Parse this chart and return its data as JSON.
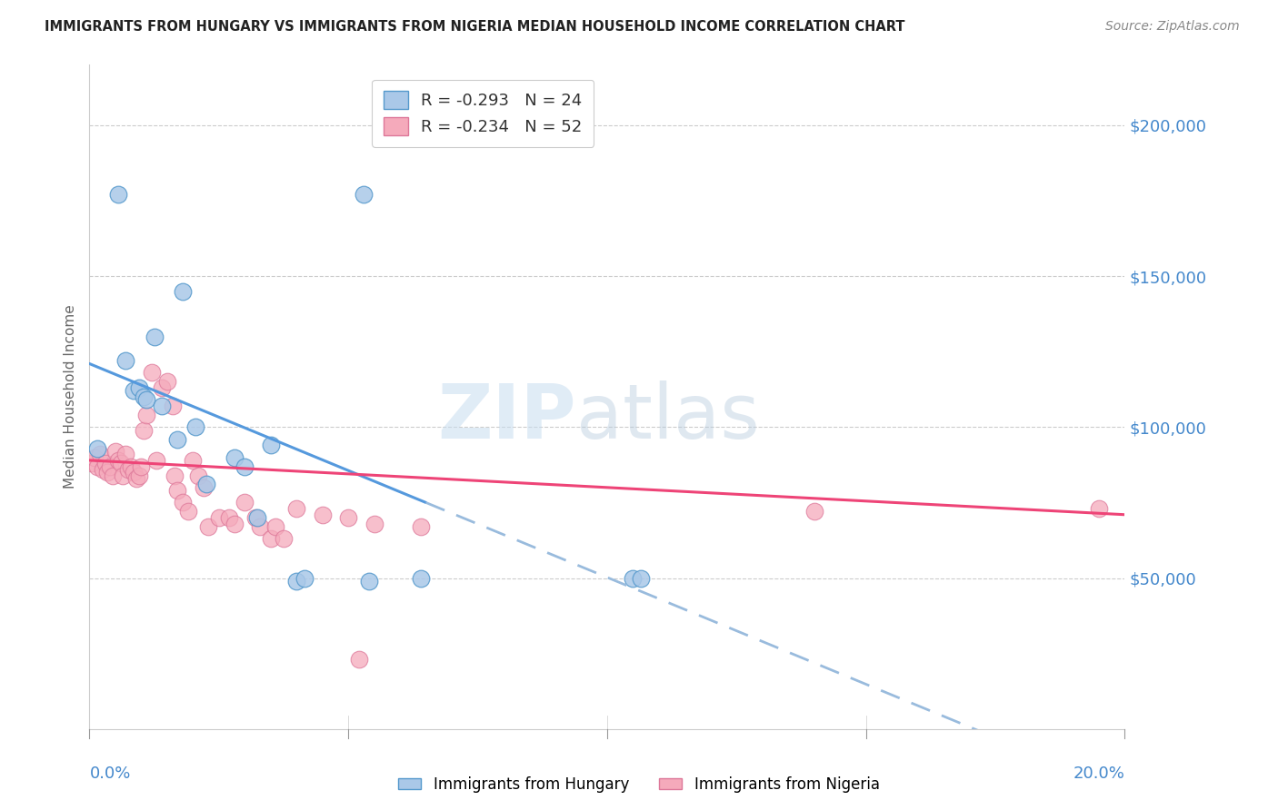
{
  "title": "IMMIGRANTS FROM HUNGARY VS IMMIGRANTS FROM NIGERIA MEDIAN HOUSEHOLD INCOME CORRELATION CHART",
  "source": "Source: ZipAtlas.com",
  "ylabel": "Median Household Income",
  "yticks": [
    0,
    50000,
    100000,
    150000,
    200000
  ],
  "ytick_labels": [
    "",
    "$50,000",
    "$100,000",
    "$150,000",
    "$200,000"
  ],
  "xlim": [
    0.0,
    20.0
  ],
  "ylim": [
    0,
    220000
  ],
  "hungary_R": -0.293,
  "hungary_N": 24,
  "nigeria_R": -0.234,
  "nigeria_N": 52,
  "hungary_color": "#aac8e8",
  "hungary_edge_color": "#5599cc",
  "nigeria_color": "#f5aabb",
  "nigeria_edge_color": "#dd7799",
  "hungary_line_color": "#5599dd",
  "nigeria_line_color": "#ee4477",
  "dashed_line_color": "#99bbdd",
  "background_color": "#ffffff",
  "grid_color": "#cccccc",
  "right_label_color": "#4488cc",
  "hungary_line_x0": 0.0,
  "hungary_line_y0": 121000,
  "hungary_line_x1": 6.5,
  "hungary_line_y1": 75000,
  "hungary_solid_end": 6.5,
  "hungary_dash_end": 20.0,
  "nigeria_line_x0": 0.0,
  "nigeria_line_y0": 89000,
  "nigeria_line_x1": 20.0,
  "nigeria_line_y1": 71000,
  "hungary_x": [
    0.15,
    0.55,
    1.8,
    0.7,
    0.85,
    0.95,
    1.05,
    1.1,
    1.25,
    1.4,
    1.7,
    2.05,
    2.25,
    2.8,
    3.0,
    3.25,
    3.5,
    4.0,
    4.15,
    5.3,
    5.4,
    6.4,
    10.5,
    10.65
  ],
  "hungary_y": [
    93000,
    177000,
    145000,
    122000,
    112000,
    113000,
    110000,
    109000,
    130000,
    107000,
    96000,
    100000,
    81000,
    90000,
    87000,
    70000,
    94000,
    49000,
    50000,
    177000,
    49000,
    50000,
    50000,
    50000
  ],
  "nigeria_x": [
    0.05,
    0.1,
    0.15,
    0.2,
    0.25,
    0.3,
    0.35,
    0.4,
    0.45,
    0.5,
    0.55,
    0.6,
    0.65,
    0.7,
    0.75,
    0.8,
    0.85,
    0.9,
    0.95,
    1.0,
    1.05,
    1.1,
    1.2,
    1.3,
    1.4,
    1.5,
    1.6,
    1.65,
    1.7,
    1.8,
    1.9,
    2.0,
    2.1,
    2.2,
    2.3,
    2.5,
    2.7,
    2.8,
    3.0,
    3.2,
    3.3,
    3.5,
    3.6,
    3.75,
    4.0,
    4.5,
    5.0,
    5.2,
    5.5,
    6.4,
    14.0,
    19.5
  ],
  "nigeria_y": [
    88000,
    90000,
    87000,
    91000,
    86000,
    88000,
    85000,
    87000,
    84000,
    92000,
    89000,
    88000,
    84000,
    91000,
    86000,
    87000,
    85000,
    83000,
    84000,
    87000,
    99000,
    104000,
    118000,
    89000,
    113000,
    115000,
    107000,
    84000,
    79000,
    75000,
    72000,
    89000,
    84000,
    80000,
    67000,
    70000,
    70000,
    68000,
    75000,
    70000,
    67000,
    63000,
    67000,
    63000,
    73000,
    71000,
    70000,
    23000,
    68000,
    67000,
    72000,
    73000
  ]
}
